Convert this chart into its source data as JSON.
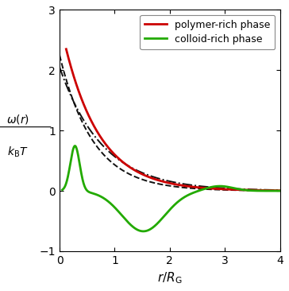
{
  "xlabel": "$r / R_\\mathrm{G}$",
  "ylabel_top": "$\\omega(r)$",
  "ylabel_bot": "$k_{\\mathrm{B}}T$",
  "xlim": [
    0,
    4
  ],
  "ylim": [
    -1,
    3
  ],
  "xticks": [
    0,
    1,
    2,
    3,
    4
  ],
  "yticks": [
    -1,
    0,
    1,
    2,
    3
  ],
  "legend_entries": [
    "polymer-rich phase",
    "colloid-rich phase"
  ],
  "line_red": "#cc0000",
  "line_green": "#22aa00",
  "line_black": "#111111",
  "figsize": [
    3.64,
    3.66
  ],
  "dpi": 100,
  "background_color": "#ffffff"
}
